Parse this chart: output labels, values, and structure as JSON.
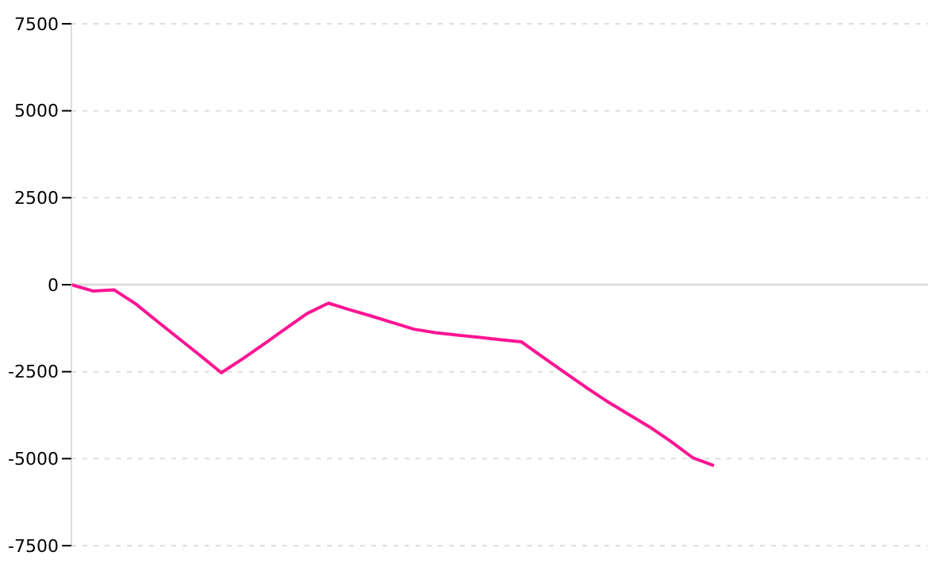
{
  "chart_data": {
    "type": "line",
    "categories": [
      null,
      null,
      null,
      null,
      null,
      null,
      null,
      null,
      null,
      null,
      null,
      null,
      null,
      null,
      null,
      null,
      null,
      null,
      null,
      null,
      null,
      null,
      null,
      null,
      null,
      null,
      null,
      null,
      null,
      null,
      null,
      null,
      null,
      null,
      null,
      null,
      null,
      null,
      null,
      null,
      null
    ],
    "series": [
      {
        "color": "#ff1493",
        "values": [
          0,
          -180,
          -150,
          -550,
          -1050,
          -1540,
          -2030,
          -2530,
          -2130,
          -1700,
          -1260,
          -830,
          -530,
          -720,
          -900,
          -1090,
          -1280,
          -1380,
          -1450,
          -1510,
          -1580,
          -1640,
          -2080,
          -2510,
          -2940,
          -3350,
          -3720,
          -4090,
          -4510,
          -4970,
          -5200,
          null,
          null,
          null,
          null,
          null,
          null,
          null,
          null,
          null,
          null
        ]
      }
    ],
    "ylim": [
      -7500,
      7500
    ],
    "yticks": [
      -7500,
      -5000,
      -2500,
      0,
      2500,
      5000,
      7500
    ],
    "grid": "y",
    "tick_labels": "y",
    "marker": "none",
    "line_style": "solid"
  }
}
